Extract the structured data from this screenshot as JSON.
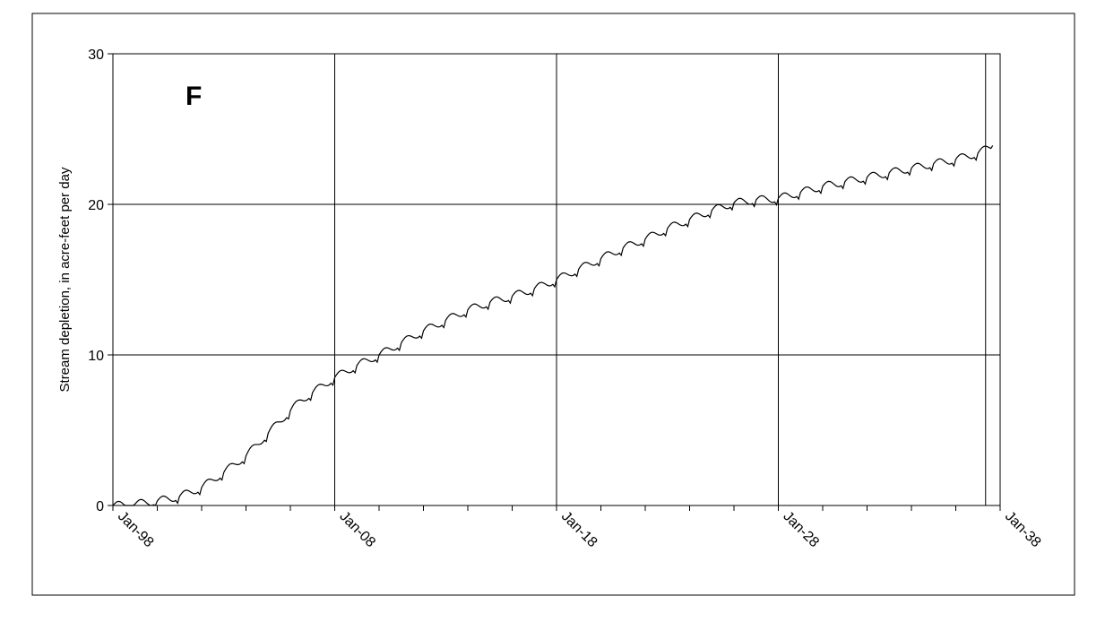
{
  "chart_data": {
    "type": "line",
    "panel_label": "F",
    "ylabel": "Stream depletion, in acre-feet per day",
    "xlabel": "",
    "x_tick_labels": [
      "Jan-98",
      "Jan-08",
      "Jan-18",
      "Jan-28",
      "Jan-38"
    ],
    "x_ticks": [
      "1998-01",
      "2008-01",
      "2018-01",
      "2028-01",
      "2038-01"
    ],
    "xlim": [
      "1998-01",
      "2038-01"
    ],
    "y_ticks": [
      0,
      10,
      20,
      30
    ],
    "ylim": [
      0,
      30
    ],
    "grid": true,
    "colors": {
      "line": "#000000",
      "grid": "#000000"
    },
    "series": [
      {
        "x": [
          "1998-01",
          "1999-01",
          "2000-01",
          "2001-01",
          "2002-01",
          "2003-01",
          "2004-01",
          "2005-01",
          "2006-01",
          "2006-07",
          "2007-01",
          "2008-01",
          "2009-01",
          "2010-01",
          "2011-01",
          "2012-01",
          "2013-01",
          "2014-01",
          "2015-01",
          "2016-01",
          "2017-01",
          "2018-01",
          "2019-01",
          "2020-01",
          "2021-01",
          "2022-01",
          "2023-01",
          "2024-01",
          "2025-01",
          "2026-01",
          "2027-01",
          "2028-01",
          "2029-01",
          "2030-01",
          "2031-01",
          "2032-01",
          "2033-01",
          "2034-01",
          "2035-01",
          "2036-01",
          "2037-01",
          "2037-09"
        ],
        "values": [
          0.0,
          0.1,
          0.3,
          0.6,
          1.2,
          2.2,
          3.3,
          4.8,
          6.3,
          7.0,
          7.5,
          8.5,
          9.3,
          10.0,
          10.8,
          11.6,
          12.3,
          13.0,
          13.5,
          13.9,
          14.4,
          15.0,
          15.7,
          16.4,
          17.1,
          17.7,
          18.4,
          19.0,
          19.6,
          20.1,
          20.3,
          20.4,
          20.8,
          21.2,
          21.5,
          21.8,
          22.1,
          22.4,
          22.7,
          23.0,
          23.4,
          23.9
        ]
      }
    ]
  }
}
